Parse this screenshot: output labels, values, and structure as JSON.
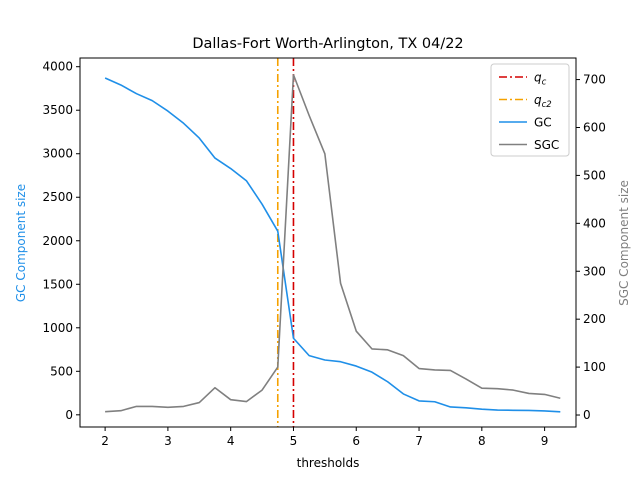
{
  "chart_data": {
    "type": "line",
    "title": "Dallas-Fort Worth-Arlington, TX 04/22",
    "xlabel": "thresholds",
    "ylabel_left": "GC Component size",
    "ylabel_right": "SGC Component size",
    "xlim": [
      1.6,
      9.5
    ],
    "ylim_left": [
      -140,
      4100
    ],
    "ylim_right": [
      -25,
      745
    ],
    "xticks": [
      2,
      3,
      4,
      5,
      6,
      7,
      8,
      9
    ],
    "yticks_left": [
      0,
      500,
      1000,
      1500,
      2000,
      2500,
      3000,
      3500,
      4000
    ],
    "yticks_right": [
      0,
      100,
      200,
      300,
      400,
      500,
      600,
      700
    ],
    "grid": false,
    "legend_position": "top-right",
    "x": [
      2.0,
      2.25,
      2.5,
      2.75,
      3.0,
      3.25,
      3.5,
      3.75,
      4.0,
      4.25,
      4.5,
      4.75,
      5.0,
      5.25,
      5.5,
      5.75,
      6.0,
      6.25,
      6.5,
      6.75,
      7.0,
      7.25,
      7.5,
      7.75,
      8.0,
      8.25,
      8.5,
      8.75,
      9.0,
      9.25
    ],
    "series": [
      {
        "name": "GC",
        "axis": "left",
        "color": "#1f8fe8",
        "values": [
          3870,
          3790,
          3690,
          3610,
          3490,
          3350,
          3180,
          2950,
          2830,
          2690,
          2420,
          2110,
          880,
          680,
          630,
          610,
          560,
          490,
          380,
          240,
          160,
          150,
          90,
          80,
          65,
          55,
          52,
          50,
          45,
          35
        ]
      },
      {
        "name": "SGC",
        "axis": "right",
        "color": "#808080",
        "values": [
          7,
          9,
          18,
          18,
          16,
          18,
          26,
          57,
          32,
          28,
          52,
          100,
          710,
          625,
          545,
          275,
          175,
          138,
          136,
          124,
          97,
          94,
          93,
          75,
          56,
          55,
          52,
          45,
          43,
          35
        ]
      }
    ],
    "vlines": [
      {
        "name": "q_c",
        "label_main": "q",
        "label_sub": "c",
        "x": 5.0,
        "color": "#d40000"
      },
      {
        "name": "q_c2",
        "label_main": "q",
        "label_sub": "c2",
        "x": 4.75,
        "color": "#f5a100"
      }
    ]
  }
}
